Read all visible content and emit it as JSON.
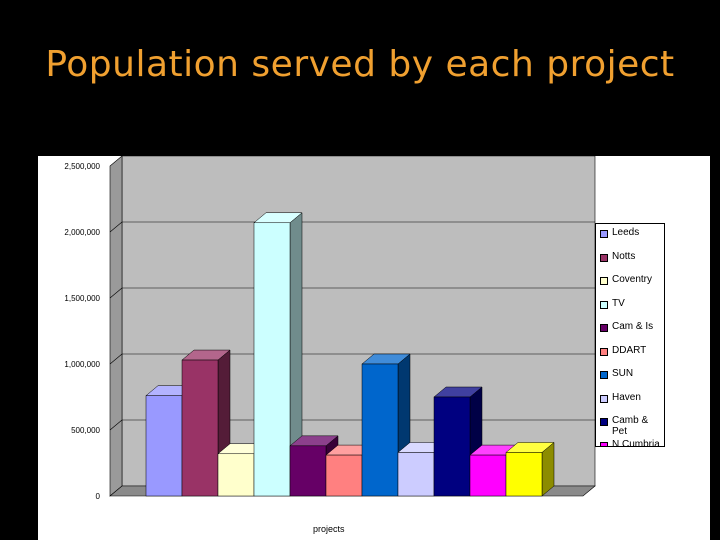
{
  "title": "Population served by each project",
  "chart_data": {
    "type": "bar",
    "title": "Population served by each project",
    "xlabel": "projects",
    "ylabel": "",
    "ylim": [
      0,
      2500000
    ],
    "y_ticks": [
      "0",
      "500,000",
      "1,000,000",
      "1,500,000",
      "2,000,000",
      "2,500,000"
    ],
    "y_tick_values": [
      0,
      500000,
      1000000,
      1500000,
      2000000,
      2500000
    ],
    "grid": true,
    "legend_position": "right",
    "series": [
      {
        "name": "Leeds",
        "value": 760000,
        "color": "#9999ff"
      },
      {
        "name": "Notts",
        "value": 1030000,
        "color": "#993366"
      },
      {
        "name": "Coventry",
        "value": 320000,
        "color": "#ffffcc"
      },
      {
        "name": "TV",
        "value": 2070000,
        "color": "#ccffff"
      },
      {
        "name": "Cam & Is",
        "value": 380000,
        "color": "#660066"
      },
      {
        "name": "DDART",
        "value": 310000,
        "color": "#ff8080"
      },
      {
        "name": "SUN",
        "value": 1000000,
        "color": "#0066cc"
      },
      {
        "name": "Haven",
        "value": 330000,
        "color": "#ccccff"
      },
      {
        "name": "Camb & Pet",
        "value": 750000,
        "color": "#000080"
      },
      {
        "name": "N Cumbria",
        "value": 310000,
        "color": "#ff00ff"
      },
      {
        "name": "",
        "value": 330000,
        "color": "#ffff00"
      }
    ]
  }
}
